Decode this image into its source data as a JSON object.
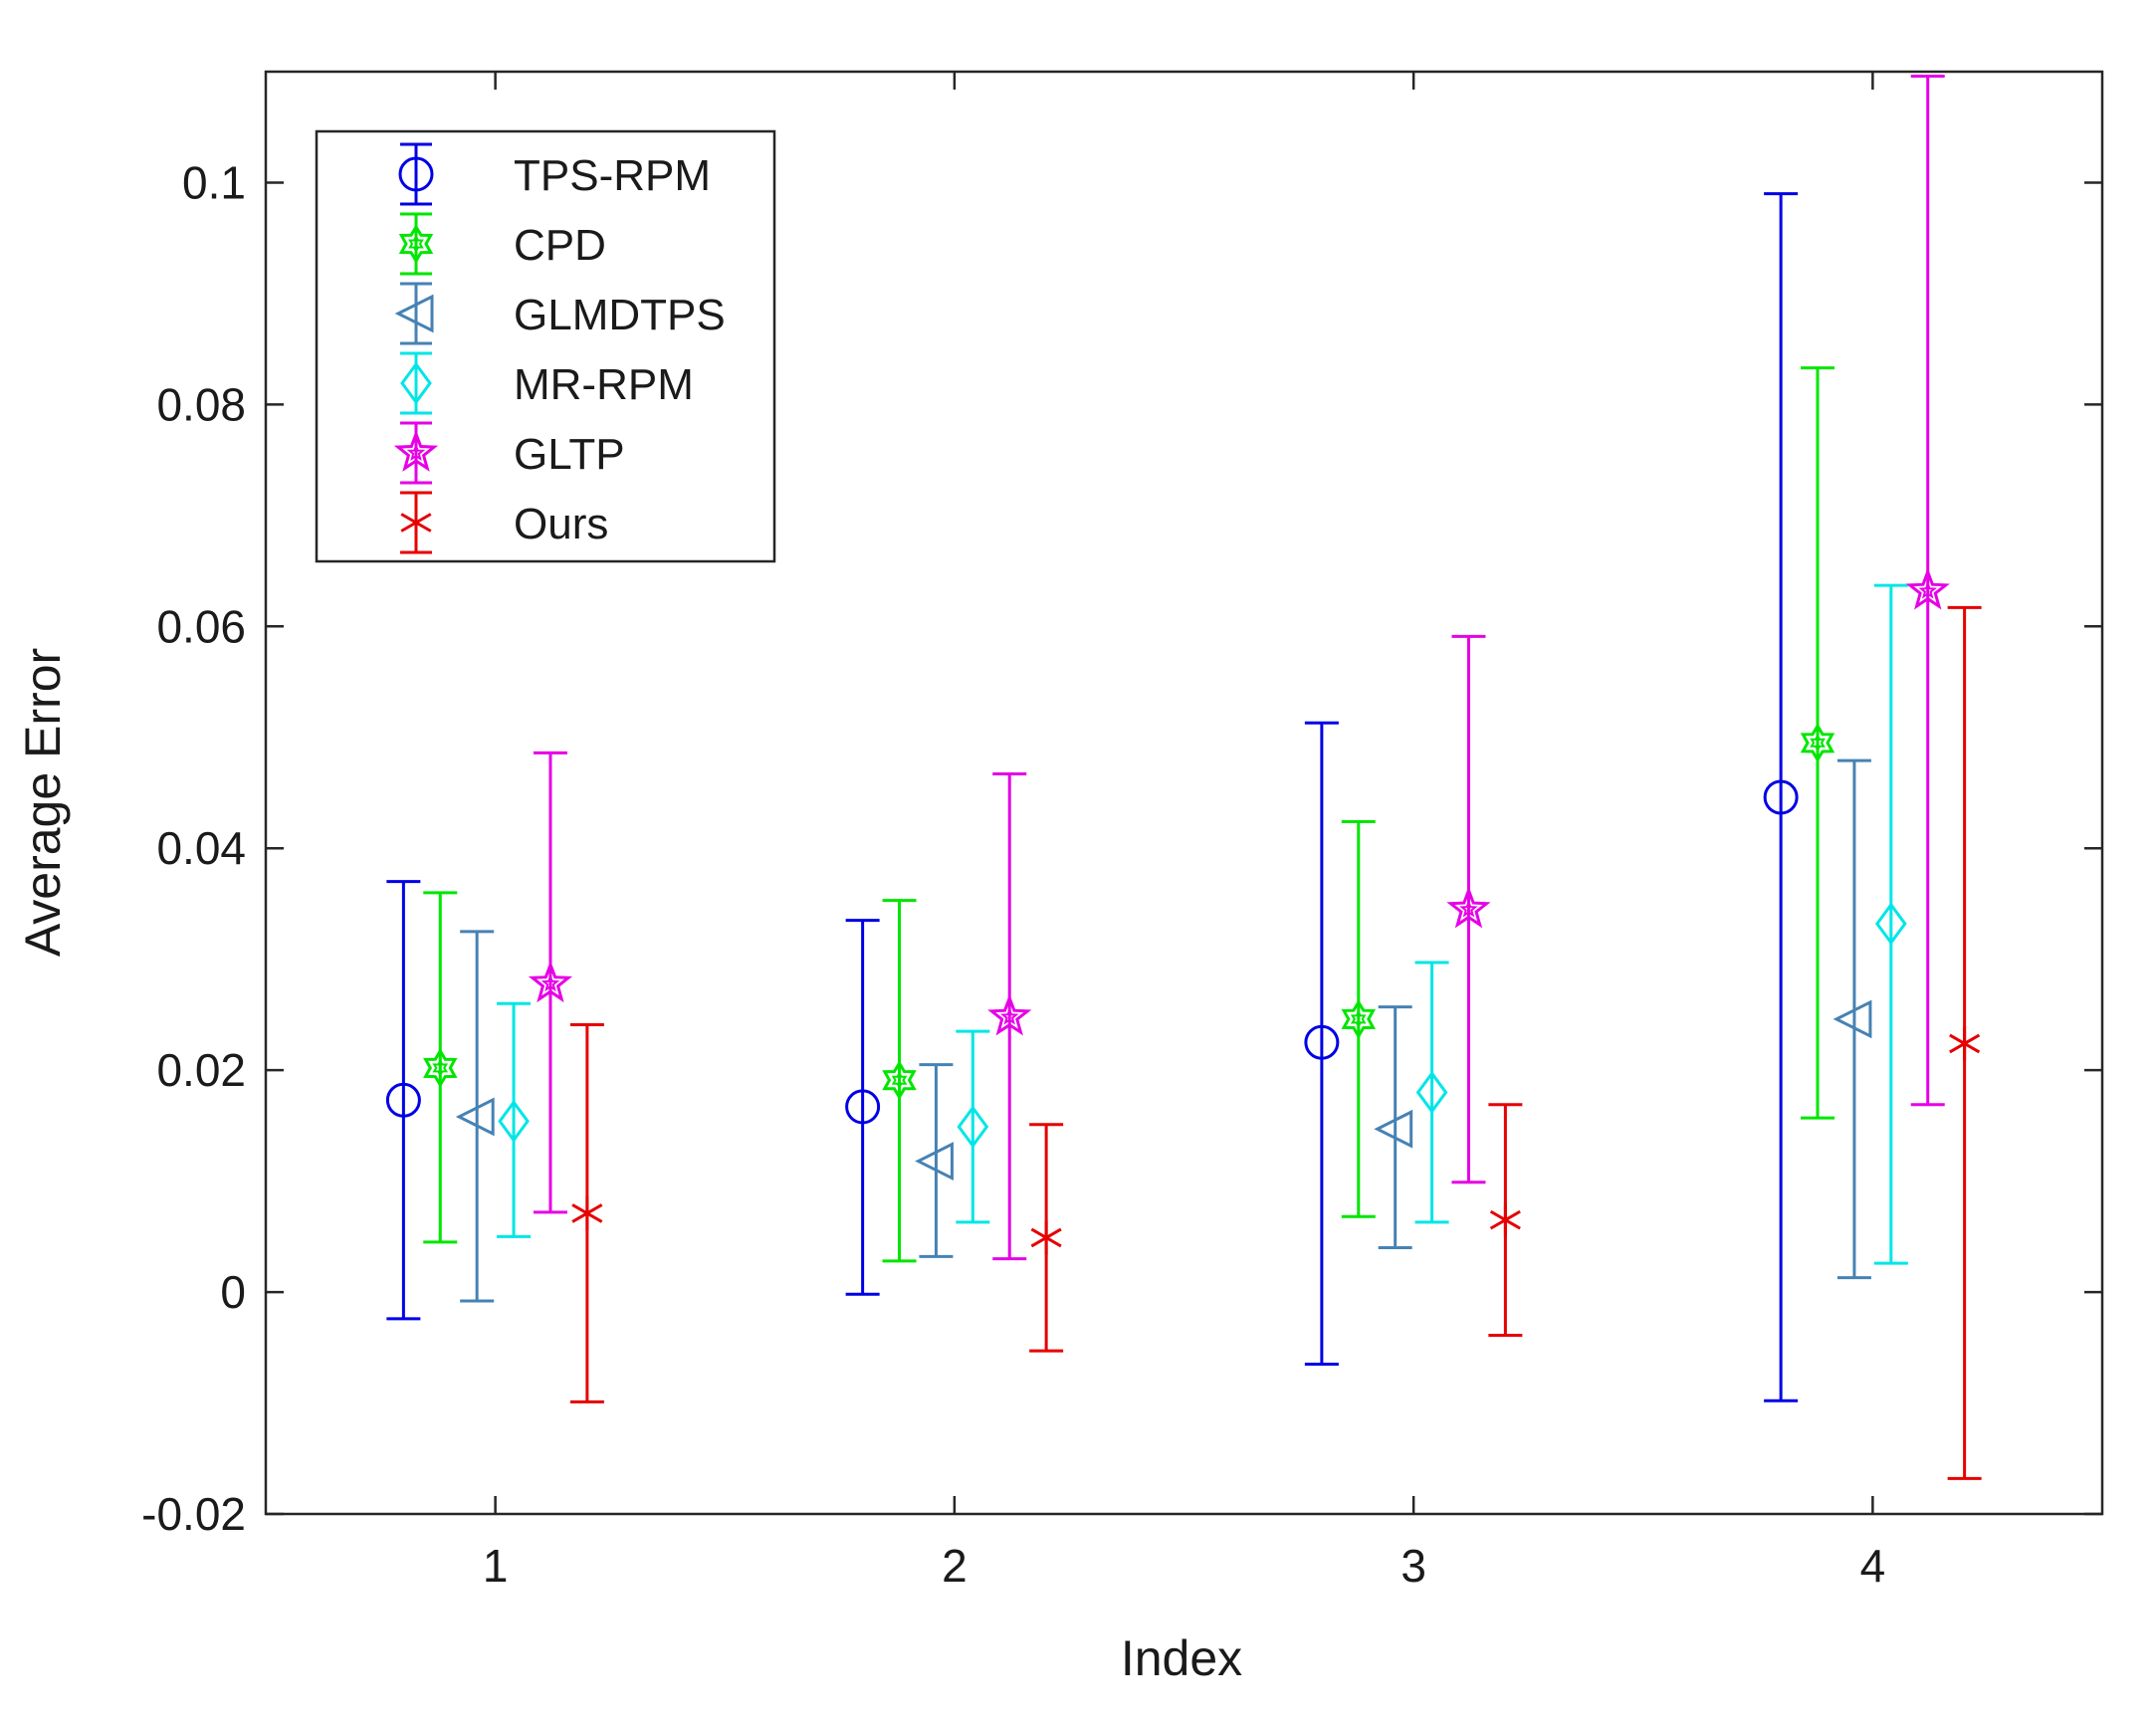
{
  "chart_data": {
    "type": "errorbar",
    "title": "",
    "xlabel": "Index",
    "ylabel": "Average Error",
    "xlim": [
      0.5,
      4.5
    ],
    "ylim": [
      -0.02,
      0.11
    ],
    "xticks": [
      1,
      2,
      3,
      4
    ],
    "xtick_labels": [
      "1",
      "2",
      "3",
      "4"
    ],
    "yticks": [
      -0.02,
      0,
      0.02,
      0.04,
      0.06,
      0.08,
      0.1
    ],
    "ytick_labels": [
      "-0.02",
      "0",
      "0.02",
      "0.04",
      "0.06",
      "0.08",
      "0.1"
    ],
    "grid": false,
    "legend_position": "top-left",
    "categories": [
      1,
      2,
      3,
      4
    ],
    "series": [
      {
        "name": "TPS-RPM",
        "color": "#0000e6",
        "marker": "circle",
        "x_offset": -0.2,
        "mean": [
          0.0173,
          0.0167,
          0.0225,
          0.0446
        ],
        "lower": [
          -0.0024,
          -0.0002,
          -0.0065,
          -0.0098
        ],
        "upper": [
          0.037,
          0.0335,
          0.0513,
          0.099
        ]
      },
      {
        "name": "CPD",
        "color": "#00e600",
        "marker": "hexagram",
        "x_offset": -0.12,
        "mean": [
          0.0202,
          0.0191,
          0.0246,
          0.0495
        ],
        "lower": [
          0.0045,
          0.0028,
          0.0068,
          0.0157
        ],
        "upper": [
          0.036,
          0.0353,
          0.0424,
          0.0833
        ]
      },
      {
        "name": "GLMDTPS",
        "color": "#4682b4",
        "marker": "triangle-left",
        "x_offset": -0.04,
        "mean": [
          0.0158,
          0.0118,
          0.0147,
          0.0246
        ],
        "lower": [
          -0.0008,
          0.0032,
          0.004,
          0.0013
        ],
        "upper": [
          0.0325,
          0.0205,
          0.0257,
          0.0479
        ]
      },
      {
        "name": "MR-RPM",
        "color": "#00e6e6",
        "marker": "diamond",
        "x_offset": 0.04,
        "mean": [
          0.0154,
          0.0149,
          0.018,
          0.0332
        ],
        "lower": [
          0.005,
          0.0063,
          0.0063,
          0.0026
        ],
        "upper": [
          0.026,
          0.0235,
          0.0297,
          0.0637
        ]
      },
      {
        "name": "GLTP",
        "color": "#e600e6",
        "marker": "pentagram",
        "x_offset": 0.12,
        "mean": [
          0.0278,
          0.0248,
          0.0345,
          0.0632
        ],
        "lower": [
          0.0072,
          0.003,
          0.0099,
          0.0169
        ],
        "upper": [
          0.0486,
          0.0467,
          0.0591,
          0.1096
        ]
      },
      {
        "name": "Ours",
        "color": "#e60000",
        "marker": "asterisk",
        "x_offset": 0.2,
        "mean": [
          0.0071,
          0.0049,
          0.0065,
          0.0224
        ],
        "lower": [
          -0.0099,
          -0.0053,
          -0.0039,
          -0.0168
        ],
        "upper": [
          0.0241,
          0.0151,
          0.0169,
          0.0617
        ]
      }
    ]
  }
}
